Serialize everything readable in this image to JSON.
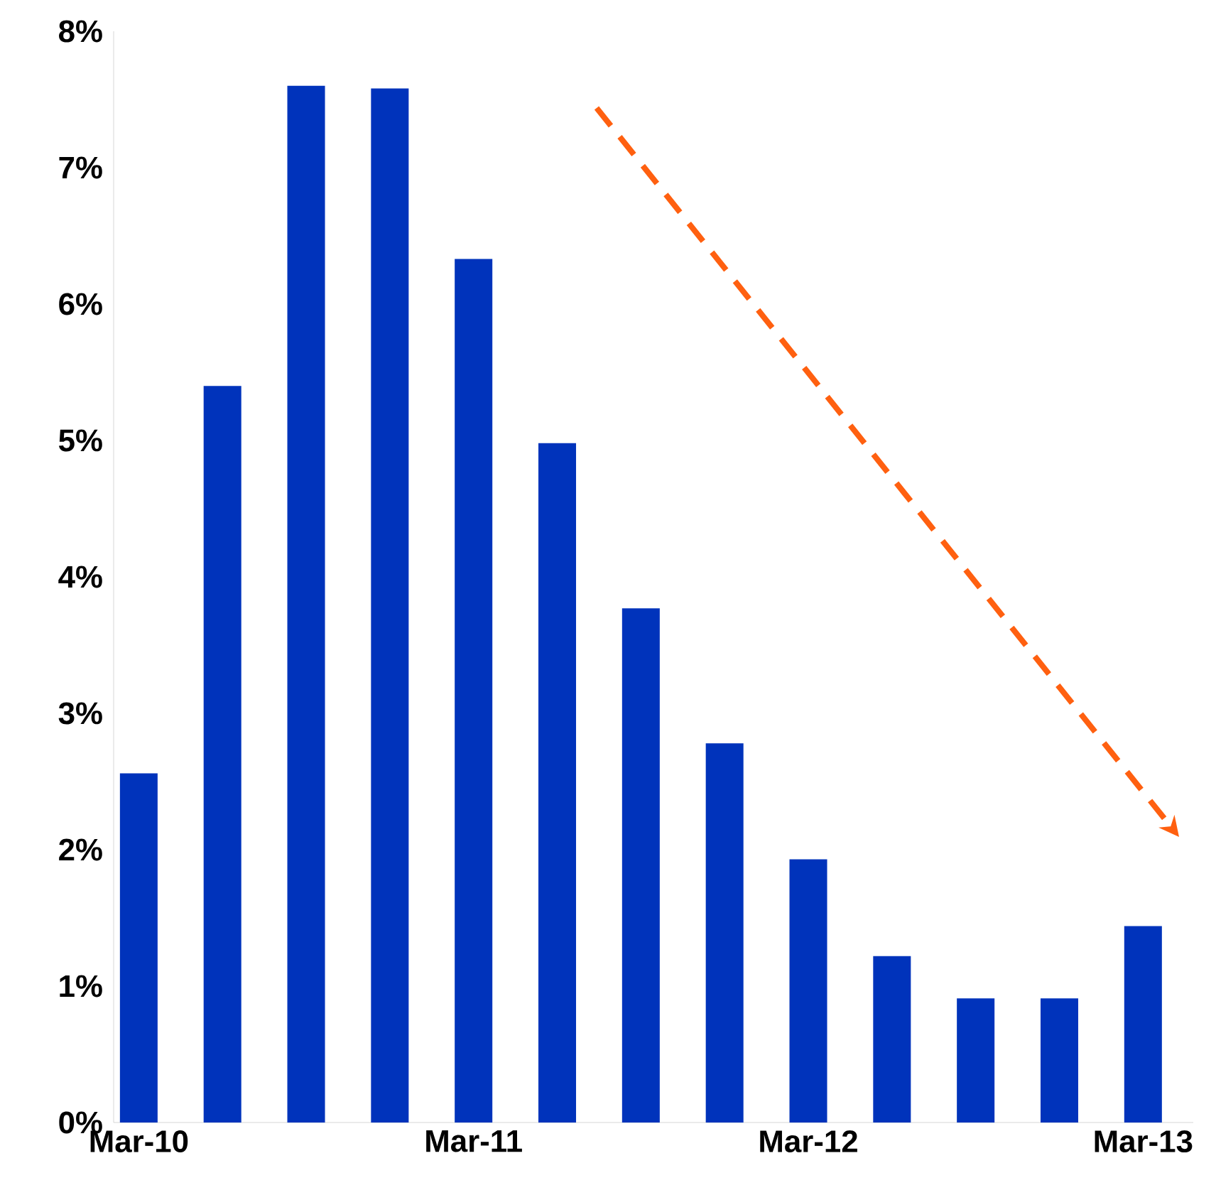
{
  "chart_data": {
    "type": "bar",
    "categories": [
      "Mar-10",
      null,
      null,
      null,
      "Mar-11",
      null,
      null,
      null,
      "Mar-12",
      null,
      null,
      null,
      "Mar-13"
    ],
    "values": [
      2.56,
      5.4,
      7.6,
      7.58,
      6.33,
      4.98,
      3.77,
      2.78,
      1.93,
      1.22,
      0.91,
      0.91,
      1.44
    ],
    "color": "#0033bb",
    "ylim": [
      0,
      8
    ],
    "yticks": [
      {
        "value": 0,
        "label": "0%"
      },
      {
        "value": 1,
        "label": "1%"
      },
      {
        "value": 2,
        "label": "2%"
      },
      {
        "value": 3,
        "label": "3%"
      },
      {
        "value": 4,
        "label": "4%"
      },
      {
        "value": 5,
        "label": "5%"
      },
      {
        "value": 6,
        "label": "6%"
      },
      {
        "value": 7,
        "label": "7%"
      },
      {
        "value": 8,
        "label": "8%"
      }
    ],
    "grid": false
  }
}
